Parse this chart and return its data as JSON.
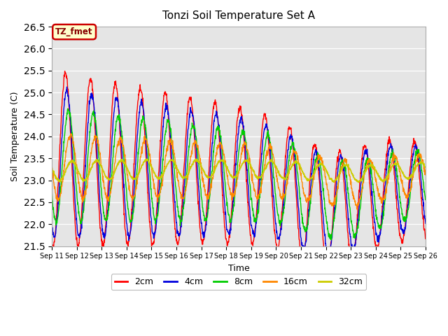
{
  "title": "Tonzi Soil Temperature Set A",
  "xlabel": "Time",
  "ylabel": "Soil Temperature (C)",
  "ylim": [
    21.5,
    26.5
  ],
  "yticks": [
    21.5,
    22.0,
    22.5,
    23.0,
    23.5,
    24.0,
    24.5,
    25.0,
    25.5,
    26.0,
    26.5
  ],
  "line_colors": {
    "2cm": "#ff0000",
    "4cm": "#0000dd",
    "8cm": "#00cc00",
    "16cm": "#ff8800",
    "32cm": "#cccc00"
  },
  "legend_label": "TZ_fmet",
  "legend_bg": "#ffffcc",
  "legend_border": "#cc0000",
  "plot_bg_color": "#e5e5e5",
  "fig_bg_color": "#ffffff",
  "n_days": 15,
  "start_day": 11,
  "end_day": 26
}
